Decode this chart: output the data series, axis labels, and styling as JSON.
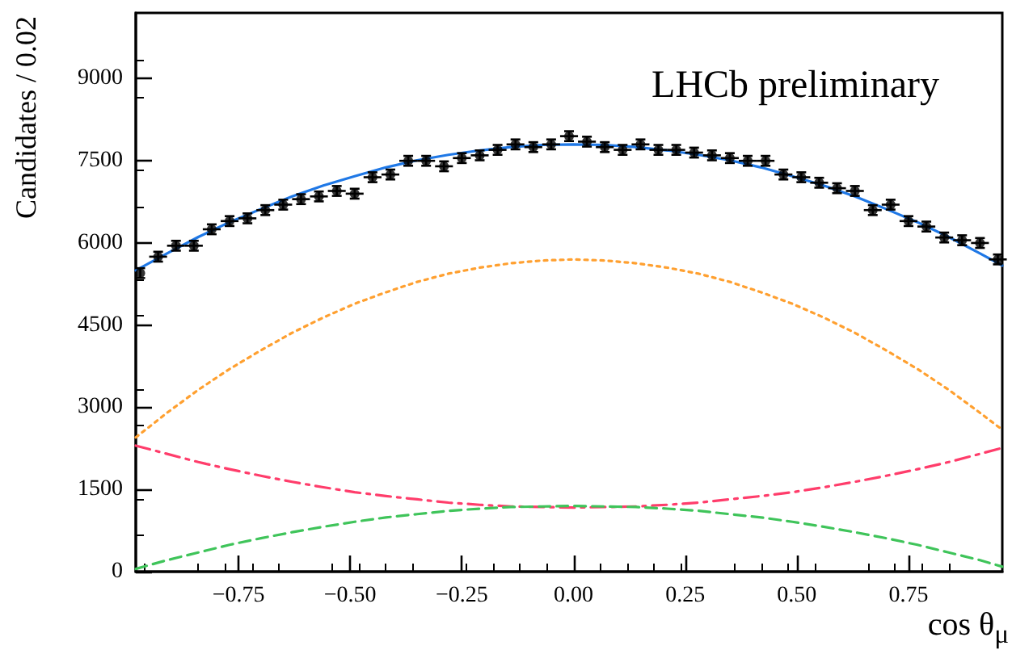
{
  "chart_data": {
    "type": "scatter",
    "xlabel": "cos θ$_{μ}$",
    "ylabel": "Candidates / 0.02",
    "annotations": [
      "LHCb preliminary"
    ],
    "xlim": [
      -0.98,
      0.96
    ],
    "ylim": [
      0,
      10200
    ],
    "xticks": [
      {
        "value": -0.75,
        "label": "−0.75"
      },
      {
        "value": -0.5,
        "label": "−0.50"
      },
      {
        "value": -0.25,
        "label": "−0.25"
      },
      {
        "value": 0,
        "label": "0.00"
      },
      {
        "value": 0.25,
        "label": "0.25"
      },
      {
        "value": 0.5,
        "label": "0.50"
      },
      {
        "value": 0.75,
        "label": "0.75"
      }
    ],
    "yticks": [
      0,
      1500,
      3000,
      4500,
      6000,
      7500,
      9000
    ],
    "marker": "circle",
    "grid": false,
    "series": [
      {
        "color": "#000000",
        "x": [
          -0.97,
          -0.93,
          -0.89,
          -0.85,
          -0.81,
          -0.77,
          -0.73,
          -0.69,
          -0.65,
          -0.61,
          -0.57,
          -0.53,
          -0.49,
          -0.45,
          -0.41,
          -0.37,
          -0.33,
          -0.29,
          -0.25,
          -0.21,
          -0.17,
          -0.13,
          -0.09,
          -0.05,
          -0.01,
          0.03,
          0.07,
          0.11,
          0.15,
          0.19,
          0.23,
          0.27,
          0.31,
          0.35,
          0.39,
          0.43,
          0.47,
          0.51,
          0.55,
          0.59,
          0.63,
          0.67,
          0.71,
          0.75,
          0.79,
          0.83,
          0.87,
          0.91,
          0.95
        ],
        "values": [
          5450,
          5750,
          5950,
          5950,
          6250,
          6400,
          6450,
          6600,
          6700,
          6800,
          6850,
          6950,
          6900,
          7200,
          7250,
          7500,
          7500,
          7400,
          7550,
          7600,
          7700,
          7800,
          7750,
          7800,
          7950,
          7850,
          7750,
          7700,
          7800,
          7700,
          7700,
          7650,
          7600,
          7550,
          7500,
          7500,
          7250,
          7200,
          7100,
          7000,
          6950,
          6600,
          6700,
          6400,
          6300,
          6100,
          6050,
          6000,
          5700
        ],
        "errors": [
          90,
          90,
          90,
          90,
          90,
          90,
          90,
          90,
          90,
          90,
          90,
          90,
          90,
          90,
          90,
          90,
          90,
          90,
          90,
          90,
          90,
          90,
          90,
          90,
          90,
          90,
          90,
          90,
          90,
          90,
          90,
          90,
          90,
          90,
          90,
          90,
          90,
          90,
          90,
          90,
          90,
          90,
          90,
          90,
          90,
          90,
          90,
          90,
          90
        ],
        "xerrors": [
          null,
          0.02,
          0.02,
          0.02,
          0.02,
          0.02,
          0.02,
          0.02,
          0.02,
          0.02,
          0.02,
          0.02,
          0.02,
          0.02,
          0.02,
          0.02,
          0.02,
          0.02,
          0.02,
          0.02,
          0.02,
          0.02,
          0.02,
          0.02,
          0.02,
          0.02,
          0.02,
          0.02,
          0.02,
          0.02,
          0.02,
          0.02,
          0.02,
          0.02,
          0.02,
          0.02,
          0.02,
          0.02,
          0.02,
          0.02,
          0.02,
          0.02,
          0.02,
          0.02,
          0.02,
          0.02,
          0.02,
          0.02,
          0.02
        ]
      },
      {
        "type": "line",
        "color": "#1f78e6",
        "line_style": "solid",
        "marker": "none",
        "x": [
          -0.98,
          -0.91,
          -0.84,
          -0.77,
          -0.7,
          -0.63,
          -0.56,
          -0.49,
          -0.42,
          -0.35,
          -0.28,
          -0.21,
          -0.14,
          -0.07,
          0,
          0.07,
          0.14,
          0.21,
          0.28,
          0.35,
          0.42,
          0.49,
          0.56,
          0.63,
          0.7,
          0.77,
          0.84,
          0.91,
          0.96
        ],
        "values": [
          5500,
          5810,
          6110,
          6380,
          6620,
          6850,
          7050,
          7220,
          7380,
          7510,
          7610,
          7690,
          7750,
          7790,
          7800,
          7790,
          7750,
          7690,
          7610,
          7510,
          7380,
          7220,
          7050,
          6850,
          6620,
          6380,
          6110,
          5810,
          5590
        ]
      },
      {
        "type": "line",
        "color": "#ffa030",
        "line_style": "dotted",
        "marker": "none",
        "x": [
          -0.98,
          -0.91,
          -0.84,
          -0.77,
          -0.7,
          -0.63,
          -0.56,
          -0.49,
          -0.42,
          -0.35,
          -0.28,
          -0.21,
          -0.14,
          -0.07,
          0,
          0.07,
          0.14,
          0.21,
          0.28,
          0.35,
          0.42,
          0.49,
          0.56,
          0.63,
          0.7,
          0.77,
          0.84,
          0.91,
          0.96
        ],
        "values": [
          2450,
          2900,
          3320,
          3700,
          4040,
          4360,
          4640,
          4890,
          5100,
          5290,
          5440,
          5550,
          5630,
          5680,
          5700,
          5680,
          5630,
          5550,
          5440,
          5290,
          5100,
          4890,
          4640,
          4360,
          4040,
          3700,
          3320,
          2900,
          2590
        ]
      },
      {
        "type": "line",
        "color": "#ff3d6b",
        "line_style": "dashdot",
        "marker": "none",
        "x": [
          -0.98,
          -0.91,
          -0.84,
          -0.77,
          -0.7,
          -0.63,
          -0.56,
          -0.49,
          -0.42,
          -0.35,
          -0.28,
          -0.21,
          -0.14,
          -0.07,
          0,
          0.07,
          0.14,
          0.21,
          0.28,
          0.35,
          0.42,
          0.49,
          0.56,
          0.63,
          0.7,
          0.77,
          0.84,
          0.91,
          0.96
        ],
        "values": [
          2300,
          2150,
          2000,
          1870,
          1750,
          1640,
          1540,
          1450,
          1380,
          1320,
          1260,
          1220,
          1190,
          1180,
          1170,
          1180,
          1190,
          1220,
          1260,
          1320,
          1380,
          1450,
          1540,
          1640,
          1750,
          1870,
          2000,
          2150,
          2260
        ]
      },
      {
        "type": "line",
        "color": "#3fc45a",
        "line_style": "dashed",
        "marker": "none",
        "x": [
          -0.98,
          -0.91,
          -0.84,
          -0.77,
          -0.7,
          -0.63,
          -0.56,
          -0.49,
          -0.42,
          -0.35,
          -0.28,
          -0.21,
          -0.14,
          -0.07,
          0,
          0.07,
          0.14,
          0.21,
          0.28,
          0.35,
          0.42,
          0.49,
          0.56,
          0.63,
          0.7,
          0.77,
          0.84,
          0.91,
          0.96
        ],
        "values": [
          50,
          210,
          350,
          490,
          610,
          720,
          820,
          910,
          990,
          1050,
          1110,
          1150,
          1180,
          1190,
          1200,
          1190,
          1180,
          1150,
          1110,
          1050,
          990,
          910,
          820,
          720,
          610,
          490,
          350,
          210,
          90
        ]
      }
    ]
  }
}
